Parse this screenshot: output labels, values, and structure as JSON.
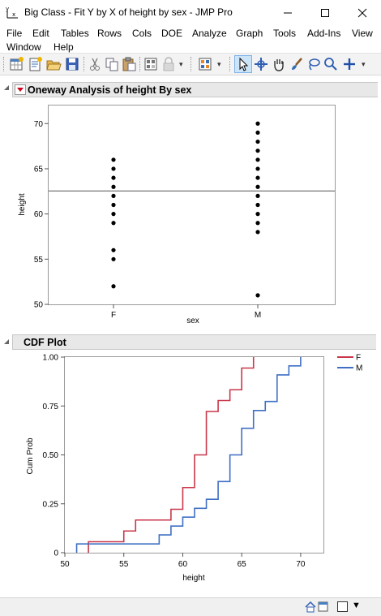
{
  "window": {
    "title": "Big Class - Fit Y by X of height by sex - JMP Pro"
  },
  "menu": [
    "File",
    "Edit",
    "Tables",
    "Rows",
    "Cols",
    "DOE",
    "Analyze",
    "Graph",
    "Tools",
    "Add-Ins",
    "View",
    "Window",
    "Help"
  ],
  "report": {
    "oneway_title": "Oneway Analysis of height By sex",
    "cdf_title": "CDF Plot"
  },
  "chart_data": [
    {
      "type": "scatter",
      "title": "",
      "xlabel": "sex",
      "ylabel": "height",
      "categories": [
        "F",
        "M"
      ],
      "ylim": [
        50,
        72
      ],
      "yticks": [
        50,
        55,
        60,
        65,
        70
      ],
      "grand_mean": 62.55,
      "series": [
        {
          "category": "F",
          "values": [
            52,
            55,
            56,
            59,
            60,
            61,
            62,
            63,
            64,
            65,
            66
          ]
        },
        {
          "category": "M",
          "values": [
            51,
            58,
            59,
            60,
            61,
            62,
            63,
            64,
            65,
            66,
            67,
            68,
            69,
            70
          ]
        }
      ],
      "grid": false
    },
    {
      "type": "line",
      "title": "",
      "xlabel": "height",
      "ylabel": "Cum Prob",
      "xlim": [
        50,
        72
      ],
      "ylim": [
        0,
        1
      ],
      "xticks": [
        50,
        55,
        60,
        65,
        70
      ],
      "yticks": [
        "0",
        "0.25",
        "0.50",
        "0.75",
        "1.00"
      ],
      "legend_position": "right",
      "series": [
        {
          "name": "F",
          "color": "#c8374a",
          "x": [
            52,
            55,
            56,
            59,
            60,
            61,
            62,
            63,
            64,
            65,
            66
          ],
          "y": [
            0.056,
            0.111,
            0.167,
            0.222,
            0.333,
            0.5,
            0.722,
            0.778,
            0.833,
            0.944,
            1.0
          ]
        },
        {
          "name": "M",
          "color": "#3f6fc4",
          "x": [
            51,
            58,
            59,
            60,
            61,
            62,
            63,
            64,
            65,
            66,
            67,
            68,
            69,
            70
          ],
          "y": [
            0.045,
            0.091,
            0.136,
            0.182,
            0.227,
            0.273,
            0.364,
            0.5,
            0.636,
            0.727,
            0.773,
            0.909,
            0.955,
            1.0
          ]
        }
      ],
      "grid": false
    }
  ],
  "colors": {
    "F": "#c8374a",
    "M": "#3f6fc4",
    "toolbar_bg": "#f3f3f3",
    "outline_bg": "#e8e8e8"
  },
  "icons": [
    "jmp-app-icon",
    "minimize-icon",
    "maximize-icon",
    "close-icon",
    "new-table-icon",
    "new-script-icon",
    "open-icon",
    "save-icon",
    "cut-icon",
    "copy-icon",
    "paste-icon",
    "table-icon",
    "lock-icon",
    "graph-builder-icon",
    "arrow-tool-icon",
    "crosshair-icon",
    "hand-icon",
    "brush-icon",
    "lasso-icon",
    "magnifier-icon",
    "plus-icon",
    "home-icon",
    "window-list-icon"
  ]
}
